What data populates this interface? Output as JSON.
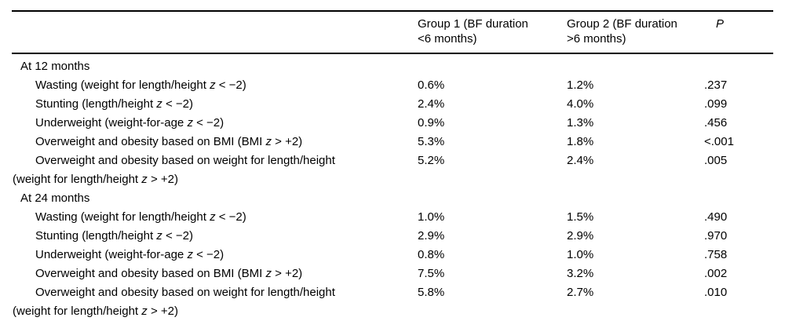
{
  "table": {
    "columns": {
      "label": "",
      "group1": "Group 1 (BF duration <6 months)",
      "group2": "Group 2 (BF duration >6 months)",
      "p": "P"
    },
    "rows": [
      {
        "type": "section",
        "label": "At 12 months",
        "group1": "",
        "group2": "",
        "p": ""
      },
      {
        "type": "item",
        "label": "Wasting (weight for length/height z < −2)",
        "group1": "0.6%",
        "group2": "1.2%",
        "p": ".237"
      },
      {
        "type": "item",
        "label": "Stunting (length/height z < −2)",
        "group1": "2.4%",
        "group2": "4.0%",
        "p": ".099"
      },
      {
        "type": "item",
        "label": "Underweight (weight-for-age z < −2)",
        "group1": "0.9%",
        "group2": "1.3%",
        "p": ".456"
      },
      {
        "type": "item",
        "label": "Overweight and obesity based on BMI (BMI z > +2)",
        "group1": "5.3%",
        "group2": "1.8%",
        "p": "<.001"
      },
      {
        "type": "item",
        "label": "Overweight and obesity based on weight for length/height",
        "label2": "(weight for length/height z > +2)",
        "group1": "5.2%",
        "group2": "2.4%",
        "p": ".005"
      },
      {
        "type": "section",
        "label": "At 24 months",
        "group1": "",
        "group2": "",
        "p": ""
      },
      {
        "type": "item",
        "label": "Wasting (weight for length/height z < −2)",
        "group1": "1.0%",
        "group2": "1.5%",
        "p": ".490"
      },
      {
        "type": "item",
        "label": "Stunting (length/height z < −2)",
        "group1": "2.9%",
        "group2": "2.9%",
        "p": ".970"
      },
      {
        "type": "item",
        "label": "Underweight (weight-for-age z < −2)",
        "group1": "0.8%",
        "group2": "1.0%",
        "p": ".758"
      },
      {
        "type": "item",
        "label": "Overweight and obesity based on BMI (BMI z > +2)",
        "group1": "7.5%",
        "group2": "3.2%",
        "p": ".002"
      },
      {
        "type": "item",
        "label": "Overweight and obesity based on weight for length/height",
        "label2": "(weight for length/height z > +2)",
        "group1": "5.8%",
        "group2": "2.7%",
        "p": ".010"
      }
    ]
  }
}
